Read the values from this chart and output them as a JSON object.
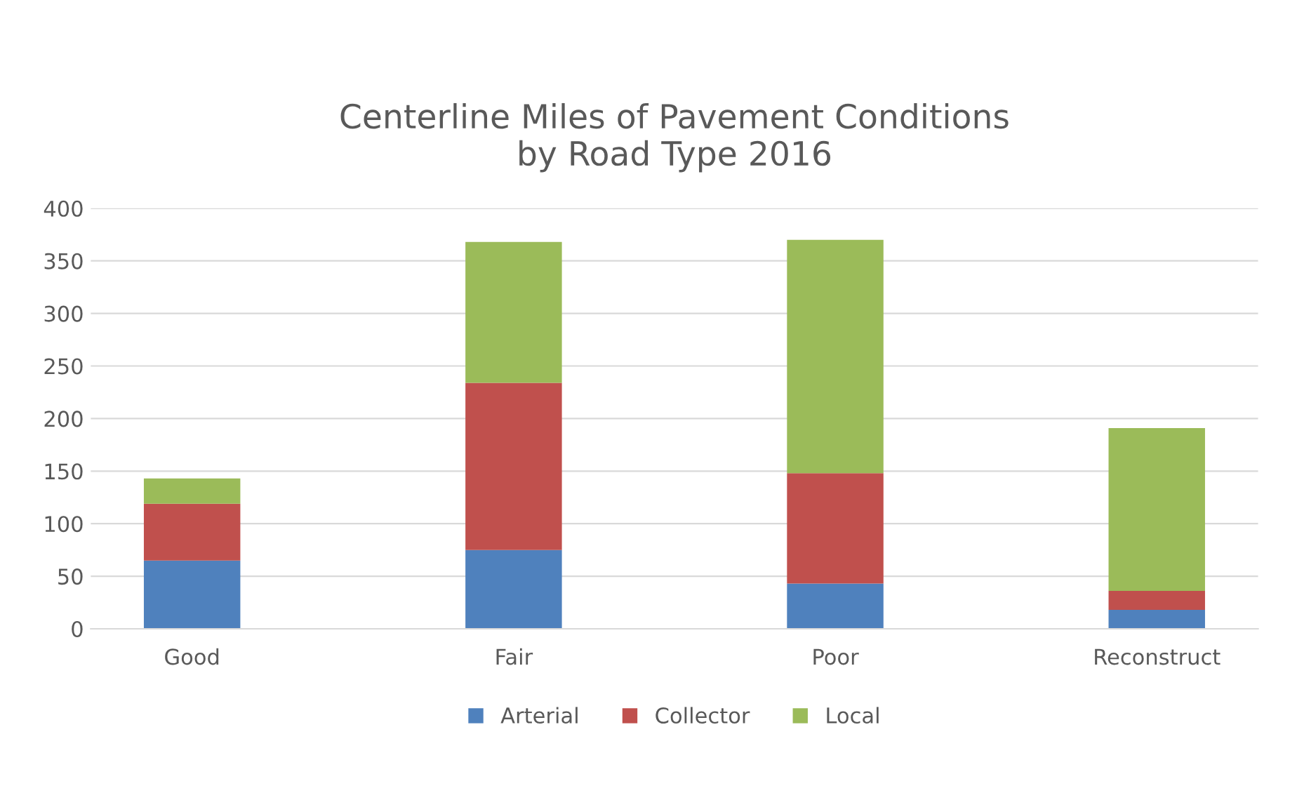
{
  "chart_data": {
    "type": "bar",
    "title": "Centerline Miles of Pavement Conditions\nby Road Type 2016",
    "categories": [
      "Good",
      "Fair",
      "Poor",
      "Reconstruct"
    ],
    "stacked": true,
    "series": [
      {
        "name": "Arterial",
        "color": "#4f81bd",
        "values": [
          65,
          75,
          43,
          18
        ]
      },
      {
        "name": "Collector",
        "color": "#c0504d",
        "values": [
          54,
          159,
          105,
          18
        ]
      },
      {
        "name": "Local",
        "color": "#9bbb59",
        "values": [
          24,
          134,
          222,
          155
        ]
      }
    ],
    "ylim": [
      0,
      400
    ],
    "yticks": [
      0,
      50,
      100,
      150,
      200,
      250,
      300,
      350,
      400
    ],
    "grid": "y",
    "legend": "bottom"
  }
}
